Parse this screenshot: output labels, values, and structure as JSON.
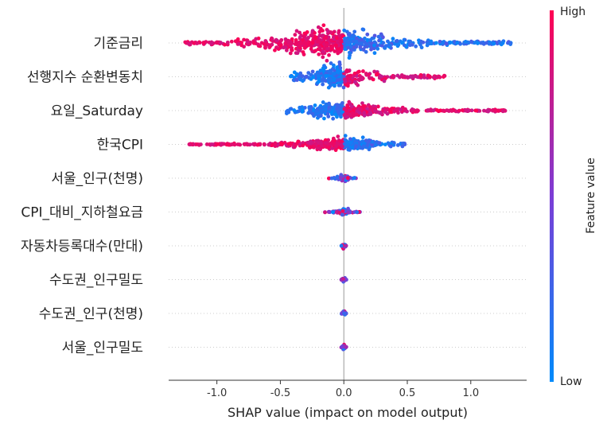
{
  "chart_data": {
    "type": "scatter",
    "subtype": "shap-beeswarm",
    "xlabel": "SHAP value (impact on model output)",
    "xlim": [
      -1.38,
      1.44
    ],
    "xticks": [
      -1.0,
      -0.5,
      0.0,
      0.5,
      1.0
    ],
    "xtick_labels": [
      "-1.0",
      "-0.5",
      "0.0",
      "0.5",
      "1.0"
    ],
    "colorbar": {
      "title": "Feature value",
      "high_label": "High",
      "low_label": "Low",
      "high_color": "#ff0052",
      "low_color": "#008bfb"
    },
    "features": [
      {
        "name": "기준금리",
        "min": -1.25,
        "max": 1.32,
        "low_side": "positive",
        "density": [
          [
            -0.12,
            18
          ],
          [
            0.1,
            10
          ],
          [
            0.3,
            4
          ]
        ]
      },
      {
        "name": "선행지수 순환변동치",
        "min": -0.42,
        "max": 0.8,
        "low_side": "negative",
        "density": [
          [
            -0.05,
            16
          ],
          [
            0.1,
            8
          ],
          [
            0.35,
            3
          ]
        ]
      },
      {
        "name": "요일_Saturday",
        "min": -0.45,
        "max": 1.28,
        "low_side": "negative",
        "density": [
          [
            0.0,
            10
          ]
        ]
      },
      {
        "name": "한국CPI",
        "min": -1.22,
        "max": 0.48,
        "low_side": "positive",
        "density": [
          [
            0.0,
            8
          ]
        ]
      },
      {
        "name": "서울_인구(천명)",
        "min": -0.12,
        "max": 0.12,
        "low_side": "mixed",
        "density": [
          [
            0.0,
            5
          ]
        ]
      },
      {
        "name": "CPI_대비_지하철요금",
        "min": -0.15,
        "max": 0.14,
        "low_side": "mixed",
        "density": [
          [
            0.0,
            5
          ]
        ]
      },
      {
        "name": "자동차등록대수(만대)",
        "min": -0.02,
        "max": 0.02,
        "low_side": "mixed",
        "density": [
          [
            0.0,
            4
          ]
        ]
      },
      {
        "name": "수도권_인구밀도",
        "min": -0.02,
        "max": 0.02,
        "low_side": "mixed",
        "density": [
          [
            0.0,
            4
          ]
        ]
      },
      {
        "name": "수도권_인구(천명)",
        "min": -0.02,
        "max": 0.02,
        "low_side": "mixed",
        "density": [
          [
            0.0,
            4
          ]
        ]
      },
      {
        "name": "서울_인구밀도",
        "min": -0.02,
        "max": 0.02,
        "low_side": "mixed",
        "density": [
          [
            0.0,
            4
          ]
        ]
      }
    ]
  }
}
